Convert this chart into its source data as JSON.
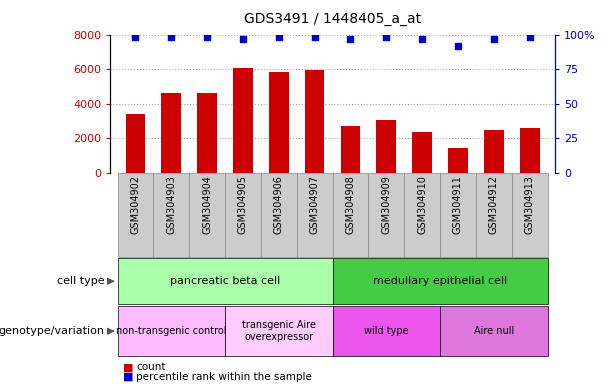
{
  "title": "GDS3491 / 1448405_a_at",
  "samples": [
    "GSM304902",
    "GSM304903",
    "GSM304904",
    "GSM304905",
    "GSM304906",
    "GSM304907",
    "GSM304908",
    "GSM304909",
    "GSM304910",
    "GSM304911",
    "GSM304912",
    "GSM304913"
  ],
  "counts": [
    3400,
    4600,
    4600,
    6050,
    5850,
    5950,
    2700,
    3050,
    2350,
    1450,
    2500,
    2600
  ],
  "percentile": [
    98,
    98,
    98,
    97,
    98,
    98,
    97,
    98,
    97,
    92,
    97,
    98
  ],
  "bar_color": "#cc0000",
  "dot_color": "#0000cc",
  "ylim_left": [
    0,
    8000
  ],
  "ylim_right": [
    0,
    100
  ],
  "yticks_left": [
    0,
    2000,
    4000,
    6000,
    8000
  ],
  "ytick_labels_left": [
    "0",
    "2000",
    "4000",
    "6000",
    "8000"
  ],
  "yticks_right": [
    0,
    25,
    50,
    75,
    100
  ],
  "ytick_labels_right": [
    "0",
    "25",
    "50",
    "75",
    "100%"
  ],
  "cell_type_groups": [
    {
      "label": "pancreatic beta cell",
      "start": 0,
      "end": 6,
      "color": "#aaffaa"
    },
    {
      "label": "medullary epithelial cell",
      "start": 6,
      "end": 12,
      "color": "#44cc44"
    }
  ],
  "genotype_groups": [
    {
      "label": "non-transgenic control",
      "start": 0,
      "end": 3,
      "color": "#ffbbff"
    },
    {
      "label": "transgenic Aire\noverexpressor",
      "start": 3,
      "end": 6,
      "color": "#ffccff"
    },
    {
      "label": "wild type",
      "start": 6,
      "end": 9,
      "color": "#ee55ee"
    },
    {
      "label": "Aire null",
      "start": 9,
      "end": 12,
      "color": "#dd77dd"
    }
  ],
  "cell_type_label": "cell type",
  "genotype_label": "genotype/variation",
  "legend_count_label": "count",
  "legend_percentile_label": "percentile rank within the sample",
  "bar_color_legend": "#cc0000",
  "dot_color_legend": "#0000cc",
  "tick_label_color_left": "#cc0000",
  "tick_label_color_right": "#0000cc",
  "xtick_bg_color": "#cccccc",
  "xtick_border_color": "#888888",
  "grid_color": "#aaaaaa",
  "plot_bg_color": "#ffffff"
}
